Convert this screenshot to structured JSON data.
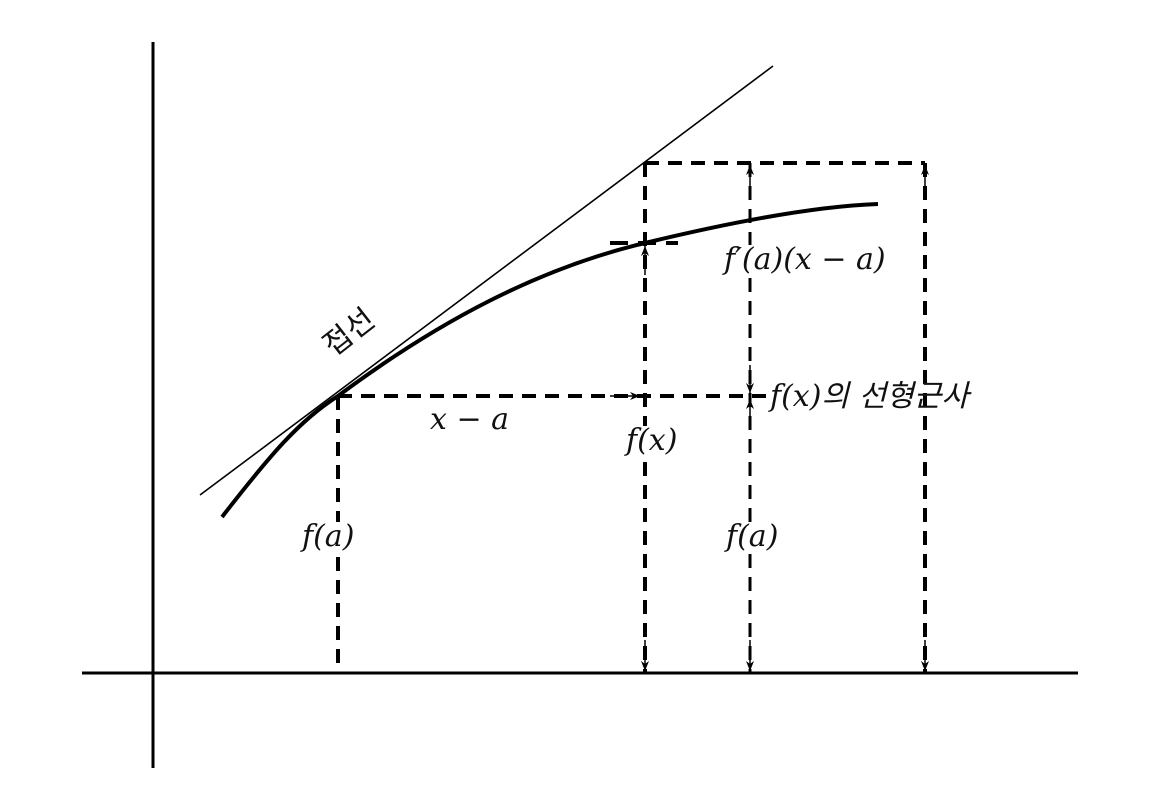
{
  "labels": {
    "tangent": "접선",
    "x_minus_a": "x − a",
    "f_x": "f(x)",
    "derivative_term": "f′(a)(x − a)",
    "linear_approx": "f(x)의 선형근사",
    "f_a_left": "f(a)",
    "f_a_right": "f(a)"
  },
  "colors": {
    "ink": "#000000",
    "background": "#ffffff"
  }
}
